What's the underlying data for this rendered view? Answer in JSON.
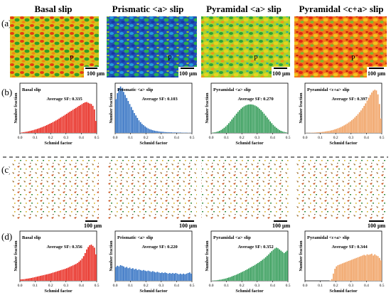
{
  "figure": {
    "column_headers": [
      "Basal slip",
      "Prismatic <a> slip",
      "Pyramidal <a> slip",
      "Pyramidal <c+a> slip"
    ],
    "panel_labels": [
      "(a)",
      "(b)",
      "(c)",
      "(d)"
    ],
    "scale_bar_label": "100 μm",
    "map_markers": [
      "P",
      "P",
      "P",
      "P"
    ],
    "colors": {
      "basal": "#e8261c",
      "prismatic": "#2f6fc2",
      "pyramidal_a": "#2f9a55",
      "pyramidal_ca": "#f0a060"
    }
  },
  "chart_data": [
    {
      "type": "bar",
      "panel": "(b)",
      "title": "Basal slip",
      "annotation": "Average SF: 0.335",
      "xlabel": "Schmid factor",
      "ylabel": "Number fraction",
      "xlim": [
        0,
        0.5
      ],
      "x_ticks": [
        "0.0",
        "0.1",
        "0.2",
        "0.3",
        "0.4",
        "0.5"
      ],
      "bin_width": 0.01,
      "values": [
        0.3,
        0.5,
        0.7,
        0.9,
        1.1,
        1.4,
        1.7,
        2.0,
        2.3,
        2.7,
        3.1,
        3.5,
        3.9,
        4.4,
        4.9,
        5.4,
        5.9,
        6.5,
        7.1,
        7.7,
        8.3,
        9.0,
        9.7,
        10.4,
        11.1,
        11.9,
        12.7,
        13.5,
        14.3,
        15.1,
        15.9,
        16.8,
        17.6,
        18.4,
        19.2,
        20.0,
        20.8,
        21.6,
        22.4,
        23.2,
        24.0,
        24.8,
        25.4,
        25.6,
        25.0,
        24.4,
        24.0,
        22.5,
        19.5,
        10.0
      ],
      "ylim": [
        0,
        40
      ],
      "color": "#e8261c"
    },
    {
      "type": "bar",
      "panel": "(b)",
      "title": "Prismatic <a> slip",
      "annotation": "Average SF: 0.103",
      "xlabel": "Schmid factor",
      "ylabel": "Number fraction",
      "xlim": [
        0,
        0.5
      ],
      "x_ticks": [
        "0.0",
        "0.1",
        "0.2",
        "0.3",
        "0.4",
        "0.5"
      ],
      "bin_width": 0.01,
      "values": [
        28.0,
        33.0,
        37.0,
        38.5,
        37.0,
        34.0,
        31.5,
        29.0,
        26.5,
        24.0,
        21.5,
        19.0,
        16.5,
        14.5,
        12.5,
        10.5,
        9.0,
        7.5,
        6.5,
        5.5,
        4.5,
        3.8,
        3.2,
        2.7,
        2.3,
        2.0,
        1.7,
        1.5,
        1.3,
        1.1,
        1.0,
        0.9,
        0.8,
        0.7,
        0.7,
        0.6,
        0.6,
        0.5,
        0.5,
        0.5,
        0.4,
        0.4,
        0.4,
        0.3,
        0.3,
        0.3,
        0.3,
        0.2,
        0.2,
        0.2
      ],
      "ylim": [
        0,
        40
      ],
      "color": "#2f6fc2"
    },
    {
      "type": "bar",
      "panel": "(b)",
      "title": "Pyramidal <a> slip",
      "annotation": "Average SF: 0.270",
      "xlabel": "Schmid factor",
      "ylabel": "Number fraction",
      "xlim": [
        0,
        0.5
      ],
      "x_ticks": [
        "0.0",
        "0.1",
        "0.2",
        "0.3",
        "0.4",
        "0.5"
      ],
      "bin_width": 0.01,
      "values": [
        0.3,
        0.4,
        0.6,
        0.9,
        1.3,
        1.8,
        2.5,
        3.3,
        4.3,
        5.4,
        6.7,
        8.1,
        9.6,
        11.2,
        12.8,
        14.4,
        16.0,
        17.5,
        18.9,
        20.1,
        21.2,
        22.1,
        22.8,
        23.3,
        23.6,
        23.7,
        23.6,
        23.3,
        22.8,
        22.1,
        21.2,
        20.1,
        18.9,
        17.5,
        16.0,
        14.4,
        12.8,
        11.2,
        9.6,
        8.1,
        6.7,
        5.4,
        4.3,
        3.3,
        2.5,
        1.8,
        1.3,
        0.9,
        0.6,
        0.4
      ],
      "ylim": [
        0,
        40
      ],
      "color": "#2f9a55"
    },
    {
      "type": "bar",
      "panel": "(b)",
      "title": "Pyramidal <c+a> slip",
      "annotation": "Average SF: 0.397",
      "xlabel": "Schmid factor",
      "ylabel": "Number fraction",
      "xlim": [
        0,
        0.5
      ],
      "x_ticks": [
        "0.0",
        "0.1",
        "0.2",
        "0.3",
        "0.4",
        "0.5"
      ],
      "bin_width": 0.01,
      "values": [
        0.1,
        0.1,
        0.2,
        0.2,
        0.3,
        0.3,
        0.4,
        0.5,
        0.6,
        0.7,
        0.8,
        0.9,
        1.1,
        1.3,
        1.5,
        1.7,
        2.0,
        2.3,
        2.6,
        3.0,
        3.4,
        3.9,
        4.4,
        5.0,
        5.6,
        6.3,
        7.0,
        7.8,
        8.7,
        9.6,
        10.6,
        11.7,
        12.9,
        14.2,
        15.6,
        17.1,
        18.7,
        20.5,
        22.4,
        24.5,
        26.8,
        29.2,
        31.5,
        33.5,
        35.0,
        35.8,
        35.2,
        32.0,
        24.0,
        12.0
      ],
      "ylim": [
        0,
        40
      ],
      "color": "#f0a060"
    },
    {
      "type": "bar",
      "panel": "(d)",
      "title": "Basal slip",
      "annotation": "Average SF: 0.356",
      "xlabel": "Schmid factor",
      "ylabel": "Number fraction",
      "xlim": [
        0,
        0.5
      ],
      "x_ticks": [
        "0.0",
        "0.1",
        "0.2",
        "0.3",
        "0.4",
        "0.5"
      ],
      "bin_width": 0.01,
      "values": [
        1.2,
        1.3,
        1.4,
        1.6,
        1.8,
        2.0,
        2.2,
        2.4,
        2.7,
        3.0,
        3.3,
        3.6,
        3.9,
        4.2,
        4.5,
        4.8,
        5.1,
        5.4,
        5.7,
        6.0,
        6.4,
        6.8,
        7.2,
        7.6,
        8.0,
        8.4,
        8.8,
        9.2,
        9.6,
        10.0,
        10.5,
        11.0,
        11.6,
        12.2,
        12.8,
        13.4,
        14.0,
        14.8,
        15.8,
        17.0,
        18.5,
        20.5,
        23.0,
        26.0,
        28.0,
        29.5,
        30.0,
        29.0,
        27.5,
        22.0
      ],
      "ylim": [
        0,
        40
      ],
      "color": "#e8261c"
    },
    {
      "type": "bar",
      "panel": "(d)",
      "title": "Prismatic <a> slip",
      "annotation": "Average SF: 0.220",
      "xlabel": "Schmid factor",
      "ylabel": "Number fraction",
      "xlim": [
        0,
        0.5
      ],
      "x_ticks": [
        "0.0",
        "0.1",
        "0.2",
        "0.3",
        "0.4",
        "0.5"
      ],
      "bin_width": 0.01,
      "values": [
        11.5,
        12.5,
        12.0,
        13.0,
        12.5,
        12.0,
        11.0,
        11.5,
        10.5,
        11.0,
        10.0,
        10.5,
        9.5,
        10.0,
        9.0,
        9.5,
        9.0,
        8.5,
        9.0,
        8.5,
        8.0,
        8.5,
        8.0,
        7.5,
        8.0,
        7.5,
        7.0,
        7.5,
        7.0,
        6.5,
        7.0,
        6.5,
        7.0,
        6.5,
        6.0,
        6.5,
        6.0,
        6.5,
        6.0,
        6.5,
        6.0,
        5.5,
        6.0,
        5.5,
        6.0,
        5.5,
        6.0,
        6.5,
        7.0,
        6.0
      ],
      "ylim": [
        0,
        40
      ],
      "color": "#2f6fc2"
    },
    {
      "type": "bar",
      "panel": "(d)",
      "title": "Pyramidal <a> slip",
      "annotation": "Average SF: 0.352",
      "xlabel": "Schmid factor",
      "ylabel": "Number fraction",
      "xlim": [
        0,
        0.5
      ],
      "x_ticks": [
        "0.0",
        "0.1",
        "0.2",
        "0.3",
        "0.4",
        "0.5"
      ],
      "bin_width": 0.01,
      "values": [
        0.2,
        0.3,
        0.4,
        0.5,
        0.7,
        0.9,
        1.1,
        1.4,
        1.7,
        2.0,
        2.4,
        2.8,
        3.2,
        3.7,
        4.2,
        4.7,
        5.2,
        5.8,
        6.4,
        7.0,
        7.6,
        8.2,
        8.9,
        9.6,
        10.3,
        11.0,
        11.7,
        12.4,
        13.2,
        14.0,
        14.8,
        15.6,
        16.5,
        17.5,
        18.5,
        19.6,
        20.8,
        22.0,
        23.3,
        24.6,
        25.8,
        26.8,
        27.5,
        27.0,
        26.0,
        25.0,
        24.0,
        23.0,
        24.0,
        25.0
      ],
      "ylim": [
        0,
        40
      ],
      "color": "#2f9a55"
    },
    {
      "type": "bar",
      "panel": "(d)",
      "title": "Pyramidal <c+a> slip",
      "annotation": "Average SF: 0.344",
      "xlabel": "Schmid factor",
      "ylabel": "Number fraction",
      "xlim": [
        0,
        0.5
      ],
      "x_ticks": [
        "0.0",
        "0.1",
        "0.2",
        "0.3",
        "0.4",
        "0.5"
      ],
      "bin_width": 0.01,
      "values": [
        0,
        0,
        0,
        0,
        0,
        0,
        0,
        0,
        0,
        0,
        0,
        0,
        0,
        0,
        0,
        0,
        0.3,
        1.5,
        6.0,
        10.0,
        12.0,
        13.0,
        13.5,
        14.0,
        14.5,
        15.0,
        15.5,
        16.0,
        16.5,
        17.0,
        17.5,
        18.0,
        18.5,
        19.0,
        19.5,
        20.0,
        20.5,
        21.0,
        21.5,
        21.0,
        22.0,
        21.5,
        22.0,
        22.5,
        21.0,
        22.0,
        21.0,
        20.5,
        19.0,
        17.0
      ],
      "ylim": [
        0,
        40
      ],
      "color": "#f0a060"
    }
  ]
}
